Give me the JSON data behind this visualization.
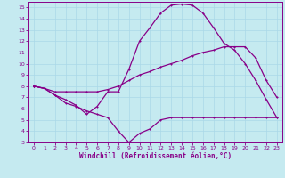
{
  "xlabel": "Windchill (Refroidissement éolien,°C)",
  "xlim": [
    -0.5,
    23.5
  ],
  "ylim": [
    3,
    15.5
  ],
  "xticks": [
    0,
    1,
    2,
    3,
    4,
    5,
    6,
    7,
    8,
    9,
    10,
    11,
    12,
    13,
    14,
    15,
    16,
    17,
    18,
    19,
    20,
    21,
    22,
    23
  ],
  "yticks": [
    3,
    4,
    5,
    6,
    7,
    8,
    9,
    10,
    11,
    12,
    13,
    14,
    15
  ],
  "background_color": "#c5eaf0",
  "grid_color": "#aad8e8",
  "line_color": "#880088",
  "line1_x": [
    0,
    1,
    2,
    3,
    4,
    5,
    6,
    7,
    8,
    9,
    10,
    11,
    12,
    13,
    14,
    15,
    16,
    17,
    18,
    19,
    20,
    21,
    22,
    23
  ],
  "line1_y": [
    8.0,
    7.8,
    7.2,
    6.8,
    6.3,
    5.5,
    6.2,
    7.5,
    7.5,
    9.5,
    12.0,
    13.2,
    14.5,
    15.2,
    15.3,
    15.2,
    14.5,
    13.2,
    11.8,
    11.2,
    10.0,
    8.5,
    6.8,
    5.2
  ],
  "line2_x": [
    0,
    1,
    2,
    3,
    4,
    5,
    6,
    7,
    8,
    9,
    10,
    11,
    12,
    13,
    14,
    15,
    16,
    17,
    18,
    19,
    20,
    21,
    22,
    23
  ],
  "line2_y": [
    8.0,
    7.8,
    7.5,
    7.5,
    7.5,
    7.5,
    7.5,
    7.7,
    8.0,
    8.5,
    9.0,
    9.3,
    9.7,
    10.0,
    10.3,
    10.7,
    11.0,
    11.2,
    11.5,
    11.5,
    11.5,
    10.5,
    8.5,
    7.0
  ],
  "line3_x": [
    0,
    1,
    2,
    3,
    4,
    5,
    6,
    7,
    8,
    9,
    10,
    11,
    12,
    13,
    14,
    15,
    16,
    17,
    18,
    19,
    20,
    21,
    22,
    23
  ],
  "line3_y": [
    8.0,
    7.8,
    7.2,
    6.5,
    6.2,
    5.8,
    5.5,
    5.2,
    4.0,
    3.0,
    3.8,
    4.2,
    5.0,
    5.2,
    5.2,
    5.2,
    5.2,
    5.2,
    5.2,
    5.2,
    5.2,
    5.2,
    5.2,
    5.2
  ]
}
